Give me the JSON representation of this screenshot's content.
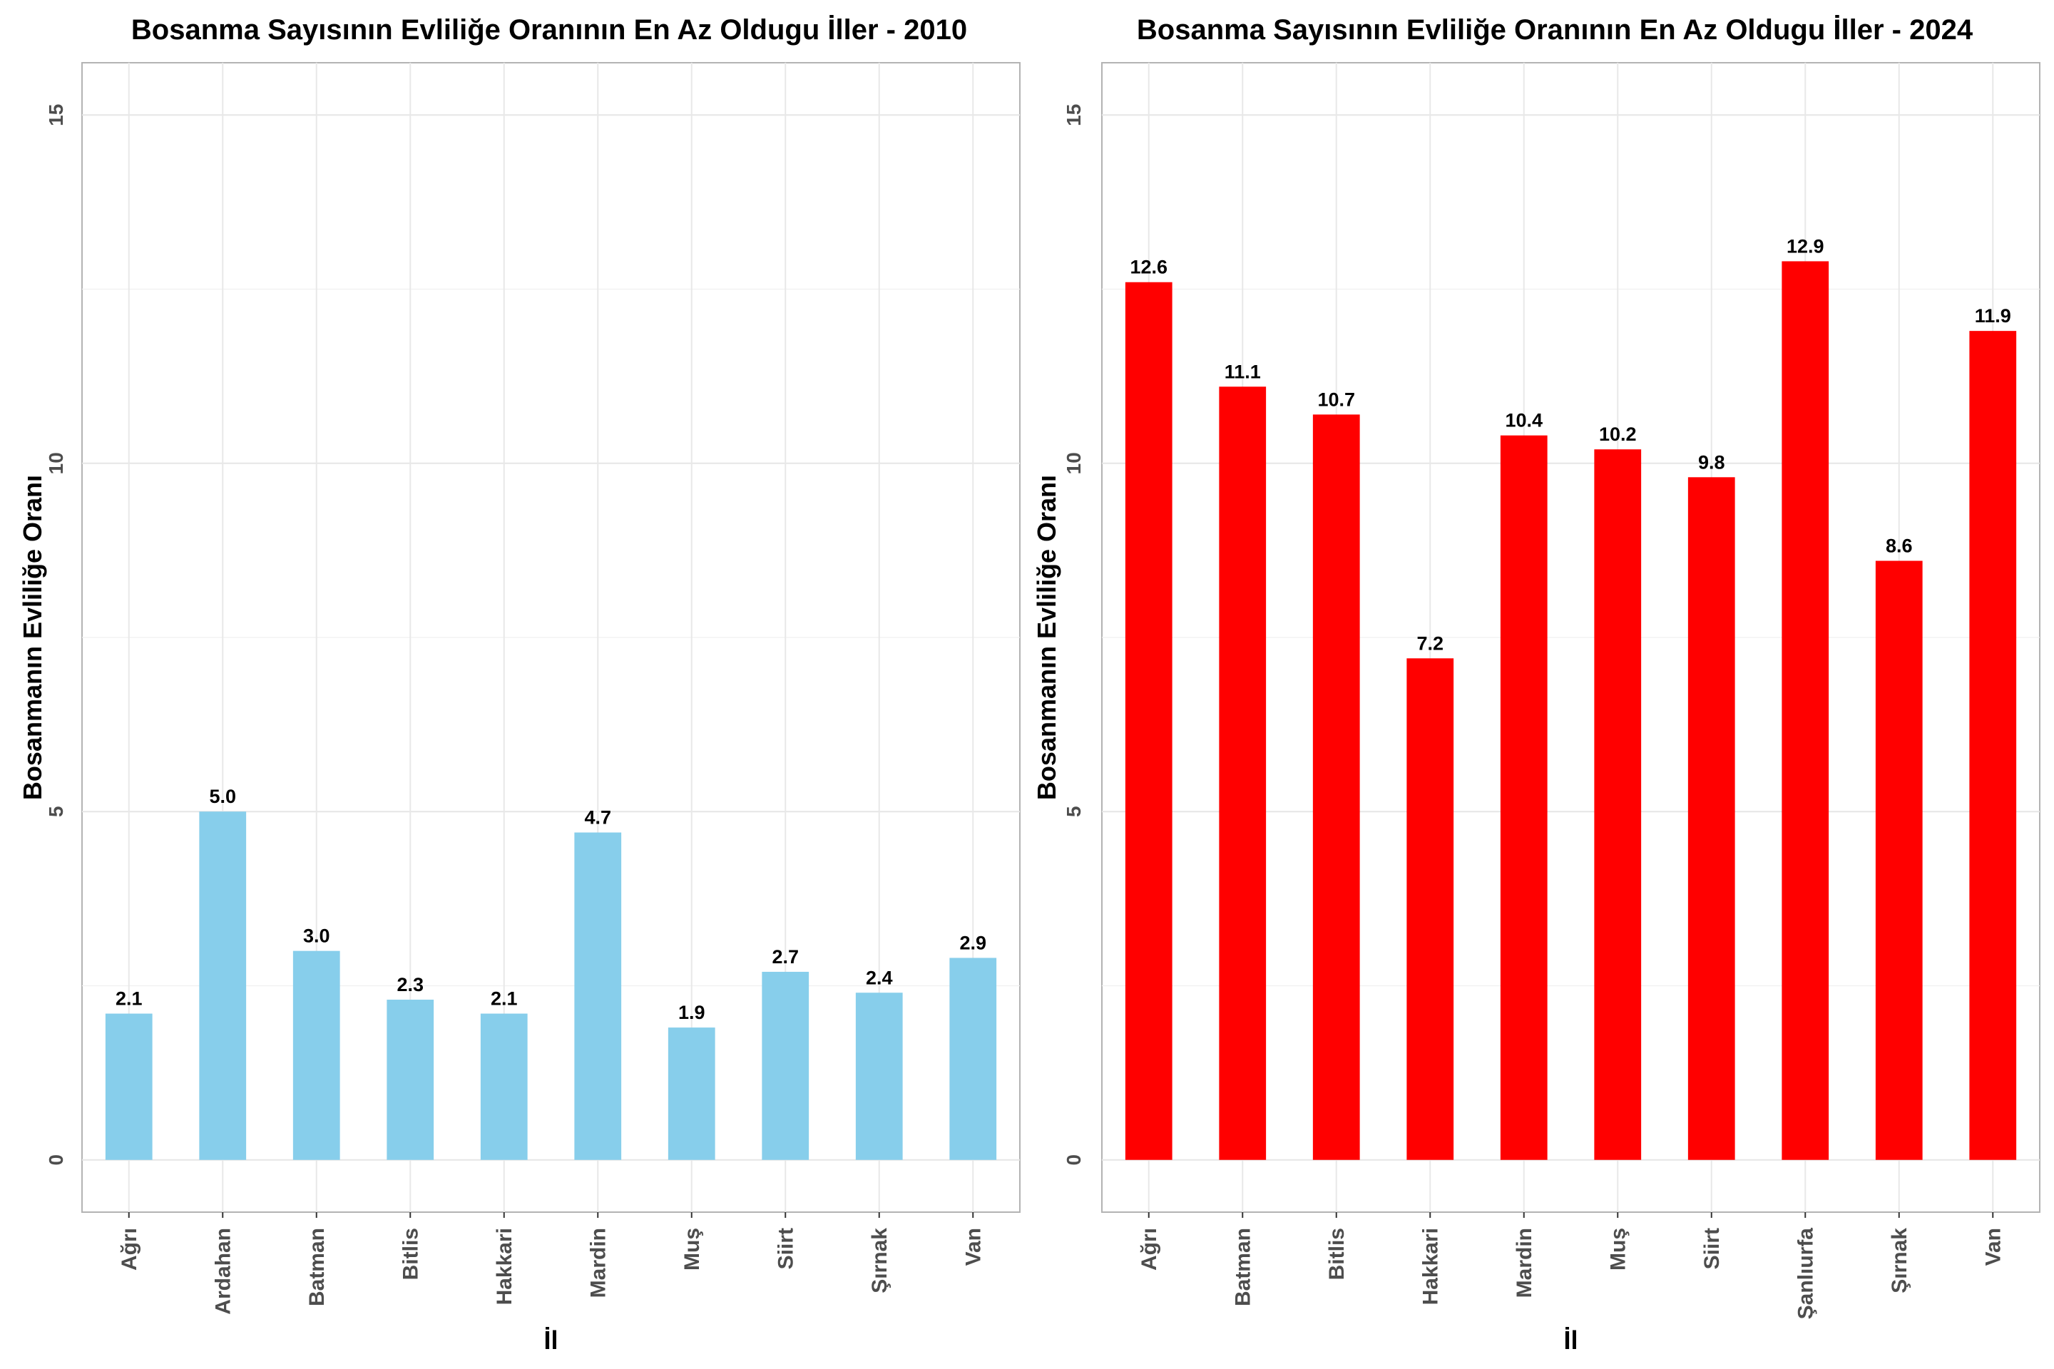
{
  "chart_data": [
    {
      "type": "bar",
      "title": "Bosanma Sayısının Evliliğe Oranının En Az Oldugu İller - 2010",
      "xlabel": "İl",
      "ylabel": "Bosanmanın Evliliğe Oranı",
      "categories": [
        "Ağrı",
        "Ardahan",
        "Batman",
        "Bitlis",
        "Hakkari",
        "Mardin",
        "Muş",
        "Siirt",
        "Şırnak",
        "Van"
      ],
      "values": [
        2.1,
        5.0,
        3.0,
        2.3,
        2.1,
        4.7,
        1.9,
        2.7,
        2.4,
        2.9
      ],
      "value_labels": [
        "2.1",
        "5.0",
        "3.0",
        "2.3",
        "2.1",
        "4.7",
        "1.9",
        "2.7",
        "2.4",
        "2.9"
      ],
      "yticks": [
        "0",
        "5",
        "10",
        "15"
      ],
      "ylim": [
        -0.75,
        15.75
      ],
      "bar_color": "#87CEEB",
      "grid": true,
      "legend": false
    },
    {
      "type": "bar",
      "title": "Bosanma Sayısının Evliliğe Oranının En Az Oldugu İller - 2024",
      "xlabel": "İl",
      "ylabel": "Bosanmanın Evliliğe Oranı",
      "categories": [
        "Ağrı",
        "Batman",
        "Bitlis",
        "Hakkari",
        "Mardin",
        "Muş",
        "Siirt",
        "Şanlıurfa",
        "Şırnak",
        "Van"
      ],
      "values": [
        12.6,
        11.1,
        10.7,
        7.2,
        10.4,
        10.2,
        9.8,
        12.9,
        8.6,
        11.9
      ],
      "value_labels": [
        "12.6",
        "11.1",
        "10.7",
        "7.2",
        "10.4",
        "10.2",
        "9.8",
        "12.9",
        "8.6",
        "11.9"
      ],
      "yticks": [
        "0",
        "5",
        "10",
        "15"
      ],
      "ylim": [
        -0.75,
        15.75
      ],
      "bar_color": "#FF0000",
      "grid": true,
      "legend": false
    }
  ]
}
